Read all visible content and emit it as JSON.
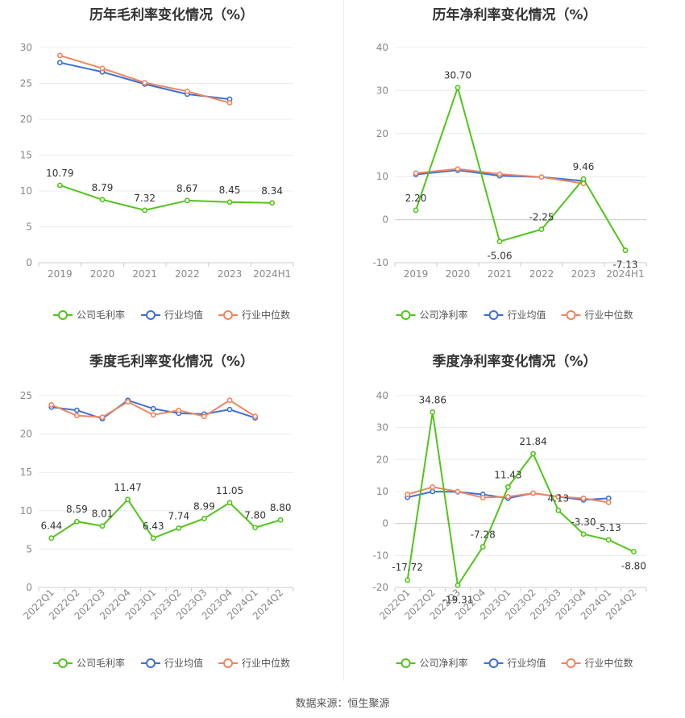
{
  "footer": "数据来源：恒生聚源",
  "colors": {
    "company": "#52c41a",
    "avg": "#3c6fd8",
    "median": "#f0855e"
  },
  "chart_data": [
    {
      "type": "line",
      "title": "历年毛利率变化情况（%）",
      "categories": [
        "2019",
        "2020",
        "2021",
        "2022",
        "2023",
        "2024H1"
      ],
      "ylim": [
        0,
        30
      ],
      "yticks": [
        0,
        5,
        10,
        15,
        20,
        25,
        30
      ],
      "grid": true,
      "legend_position": "bottom",
      "series": [
        {
          "name": "公司毛利率",
          "values": [
            10.79,
            8.79,
            7.32,
            8.67,
            8.45,
            8.34
          ],
          "labels": [
            "10.79",
            "8.79",
            "7.32",
            "8.67",
            "8.45",
            "8.34"
          ]
        },
        {
          "name": "行业均值",
          "values": [
            27.9,
            26.6,
            24.9,
            23.5,
            22.8,
            null
          ]
        },
        {
          "name": "行业中位数",
          "values": [
            28.9,
            27.1,
            25.1,
            23.9,
            22.3,
            null
          ]
        }
      ]
    },
    {
      "type": "line",
      "title": "历年净利率变化情况（%）",
      "categories": [
        "2019",
        "2020",
        "2021",
        "2022",
        "2023",
        "2024H1"
      ],
      "ylim": [
        -10,
        40
      ],
      "yticks": [
        -10,
        0,
        10,
        20,
        30,
        40
      ],
      "grid": true,
      "legend_position": "bottom",
      "series": [
        {
          "name": "公司净利率",
          "values": [
            2.2,
            30.7,
            -5.06,
            -2.25,
            9.46,
            -7.13
          ],
          "labels": [
            "2.20",
            "30.70",
            "-5.06",
            "-2.25",
            "9.46",
            "-7.13"
          ]
        },
        {
          "name": "行业均值",
          "values": [
            10.5,
            11.5,
            10.2,
            9.9,
            9.0,
            null
          ]
        },
        {
          "name": "行业中位数",
          "values": [
            10.8,
            11.8,
            10.6,
            9.9,
            8.4,
            null
          ]
        }
      ]
    },
    {
      "type": "line",
      "title": "季度毛利率变化情况（%）",
      "categories": [
        "2022Q1",
        "2022Q2",
        "2022Q3",
        "2022Q4",
        "2023Q1",
        "2023Q2",
        "2023Q3",
        "2023Q4",
        "2024Q1",
        "2024Q2"
      ],
      "ylim": [
        0,
        25
      ],
      "yticks": [
        0,
        5,
        10,
        15,
        20,
        25
      ],
      "grid": true,
      "legend_position": "bottom",
      "series": [
        {
          "name": "公司毛利率",
          "values": [
            6.44,
            8.59,
            8.01,
            11.47,
            6.43,
            7.74,
            8.99,
            11.05,
            7.8,
            8.8
          ],
          "labels": [
            "6.44",
            "8.59",
            "8.01",
            "11.47",
            "6.43",
            "7.74",
            "8.99",
            "11.05",
            "7.80",
            "8.80"
          ]
        },
        {
          "name": "行业均值",
          "values": [
            23.5,
            23.1,
            22.0,
            24.4,
            23.3,
            22.7,
            22.6,
            23.2,
            22.1,
            null
          ]
        },
        {
          "name": "行业中位数",
          "values": [
            23.8,
            22.4,
            22.2,
            24.2,
            22.5,
            23.1,
            22.3,
            24.4,
            22.3,
            null
          ]
        }
      ]
    },
    {
      "type": "line",
      "title": "季度净利率变化情况（%）",
      "categories": [
        "2022Q1",
        "2022Q2",
        "2022Q3",
        "2022Q4",
        "2023Q1",
        "2023Q2",
        "2023Q3",
        "2023Q4",
        "2024Q1",
        "2024Q2"
      ],
      "ylim": [
        -20,
        40
      ],
      "yticks": [
        -20,
        -10,
        0,
        10,
        20,
        30,
        40
      ],
      "grid": true,
      "legend_position": "bottom",
      "series": [
        {
          "name": "公司净利率",
          "values": [
            -17.72,
            34.86,
            -19.31,
            -7.28,
            11.43,
            21.84,
            4.13,
            -3.3,
            -5.13,
            -8.8
          ],
          "labels": [
            "-17.72",
            "34.86",
            "-19.31",
            "-7.28",
            "11.43",
            "21.84",
            "4.13",
            "-3.30",
            "-5.13",
            "-8.80"
          ]
        },
        {
          "name": "行业均值",
          "values": [
            8.2,
            10.0,
            9.9,
            9.1,
            7.9,
            9.5,
            8.4,
            7.4,
            7.9,
            null
          ]
        },
        {
          "name": "行业中位数",
          "values": [
            9.1,
            11.4,
            10.0,
            8.1,
            8.4,
            9.5,
            8.4,
            7.9,
            6.6,
            null
          ]
        }
      ]
    }
  ]
}
